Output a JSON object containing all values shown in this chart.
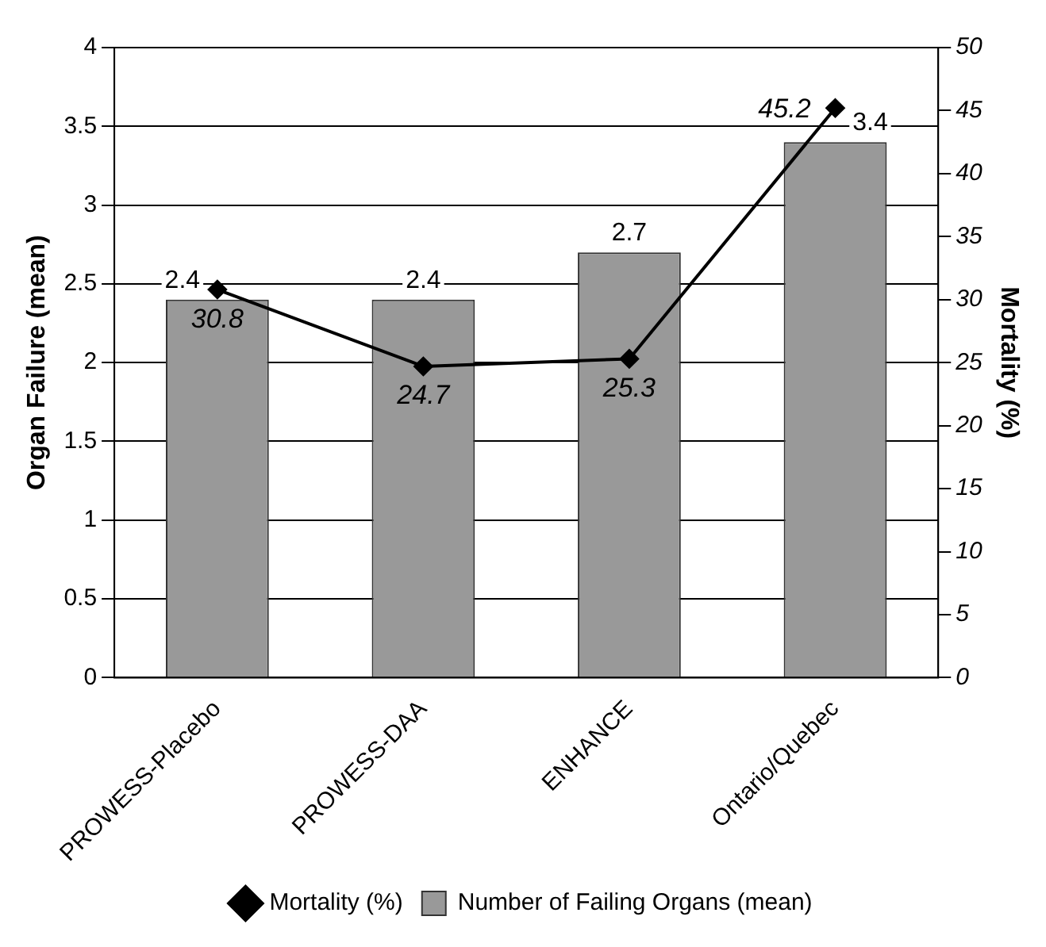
{
  "chart_data": {
    "type": "bar",
    "ylabel": "Organ Failure (mean)",
    "y2label": "Mortality (%)",
    "categories": [
      "PROWESS-Placebo",
      "PROWESS-DAA",
      "ENHANCE",
      "Ontario/Quebec"
    ],
    "series": [
      {
        "name": "Number of Failing Organs (mean)",
        "color": "#999999",
        "values": [
          2.4,
          2.4,
          2.7,
          3.4
        ]
      },
      {
        "name": "Mortality (%)",
        "type": "line",
        "color": "#000000",
        "axis": "y2",
        "marker": "diamond",
        "values": [
          30.8,
          24.7,
          25.3,
          45.2
        ]
      }
    ],
    "ylim": [
      0,
      4
    ],
    "yticks": [
      0,
      0.5,
      1,
      1.5,
      2,
      2.5,
      3,
      3.5,
      4
    ],
    "y2lim": [
      0,
      50
    ],
    "y2ticks": [
      0,
      5,
      10,
      15,
      20,
      25,
      30,
      35,
      40,
      45,
      50
    ],
    "grid": "y",
    "legend": "bottom",
    "data_labels": true
  }
}
